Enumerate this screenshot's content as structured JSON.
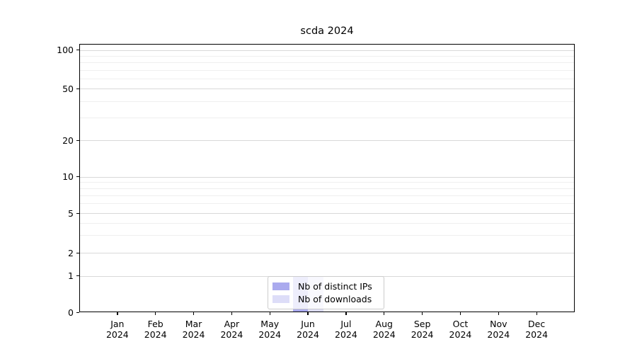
{
  "chart_data": {
    "type": "bar",
    "title": "scda 2024",
    "months": [
      "Jan",
      "Feb",
      "Mar",
      "Apr",
      "May",
      "Jun",
      "Jul",
      "Aug",
      "Sep",
      "Oct",
      "Nov",
      "Dec"
    ],
    "year_label": "2024",
    "series": [
      {
        "name": "Nb of distinct IPs",
        "color": "#aaaaee",
        "values": [
          0,
          0,
          0,
          0,
          0,
          1,
          0,
          0,
          0,
          0,
          0,
          0
        ]
      },
      {
        "name": "Nb of downloads",
        "color": "#ddddf8",
        "values": [
          0,
          0,
          0,
          0,
          0,
          1,
          0,
          0,
          0,
          0,
          0,
          0
        ]
      }
    ],
    "y_axis": {
      "scale": "asinh-log",
      "major_ticks": [
        0,
        1,
        2,
        5,
        10,
        20,
        50,
        100
      ],
      "minor_gridlines": [
        3,
        4,
        6,
        7,
        8,
        9,
        30,
        40,
        60,
        70,
        80,
        90
      ],
      "range_bottom": 0,
      "range_top_approx": 115
    },
    "legend": {
      "position": "lower-center",
      "entries": [
        "Nb of distinct IPs",
        "Nb of downloads"
      ]
    },
    "grid": true,
    "colors": {
      "major_grid": "#d9d9d9",
      "minor_grid": "#efefef",
      "spine": "#000000",
      "background": "#ffffff"
    }
  }
}
